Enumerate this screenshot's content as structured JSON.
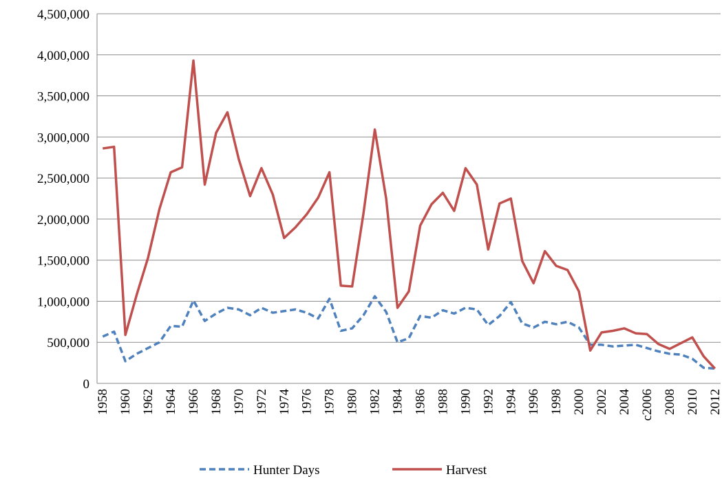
{
  "chart_data": {
    "type": "line",
    "categories": [
      "1958",
      null,
      "1960",
      null,
      "1962",
      null,
      "1964",
      null,
      "1966",
      null,
      "1968",
      null,
      "1970",
      null,
      "1972",
      null,
      "1974",
      null,
      "1976",
      null,
      "1978",
      null,
      "1980",
      null,
      "1982",
      null,
      "1984",
      null,
      "1986",
      null,
      "1988",
      null,
      "1990",
      null,
      "1992",
      null,
      "1994",
      null,
      "1996",
      null,
      "1998",
      null,
      "2000",
      null,
      "2002",
      null,
      "2004",
      null,
      "c2006",
      null,
      "2008",
      null,
      "2010",
      null,
      "2012"
    ],
    "series": [
      {
        "name": "Hunter Days",
        "color": "#4f81bd",
        "dashed": true,
        "values": [
          570000,
          630000,
          270000,
          360000,
          430000,
          500000,
          700000,
          690000,
          1010000,
          760000,
          850000,
          920000,
          900000,
          830000,
          920000,
          860000,
          880000,
          900000,
          860000,
          790000,
          1030000,
          640000,
          670000,
          830000,
          1060000,
          870000,
          500000,
          550000,
          820000,
          800000,
          890000,
          850000,
          920000,
          900000,
          710000,
          820000,
          990000,
          730000,
          680000,
          750000,
          720000,
          750000,
          680000,
          470000,
          470000,
          450000,
          460000,
          470000,
          430000,
          390000,
          360000,
          350000,
          300000,
          190000,
          180000
        ]
      },
      {
        "name": "Harvest",
        "color": "#c0504d",
        "dashed": false,
        "values": [
          2860000,
          2880000,
          590000,
          1080000,
          1530000,
          2120000,
          2570000,
          2630000,
          3930000,
          2420000,
          3050000,
          3300000,
          2730000,
          2280000,
          2620000,
          2300000,
          1770000,
          1900000,
          2060000,
          2260000,
          2570000,
          1190000,
          1180000,
          2070000,
          3090000,
          2250000,
          920000,
          1120000,
          1920000,
          2180000,
          2320000,
          2100000,
          2620000,
          2420000,
          1630000,
          2190000,
          2250000,
          1490000,
          1220000,
          1610000,
          1430000,
          1380000,
          1120000,
          400000,
          620000,
          640000,
          670000,
          610000,
          600000,
          480000,
          420000,
          490000,
          560000,
          330000,
          180000
        ]
      }
    ],
    "ylim": [
      0,
      4500000
    ],
    "yticks": [
      0,
      {
        "value": 500000,
        "label": "500,000"
      },
      {
        "value": 1000000,
        "label": "1,000,000"
      },
      {
        "value": 1500000,
        "label": "1,500,000"
      },
      {
        "value": 2000000,
        "label": "2,000,000"
      },
      {
        "value": 2500000,
        "label": "2,500,000"
      },
      {
        "value": 3000000,
        "label": "3,000,000"
      },
      {
        "value": 3500000,
        "label": "3,500,000"
      },
      {
        "value": 4000000,
        "label": "4,000,000"
      },
      {
        "value": 4500000,
        "label": "4,500,000"
      }
    ],
    "grid": true,
    "legend": "bottom"
  }
}
